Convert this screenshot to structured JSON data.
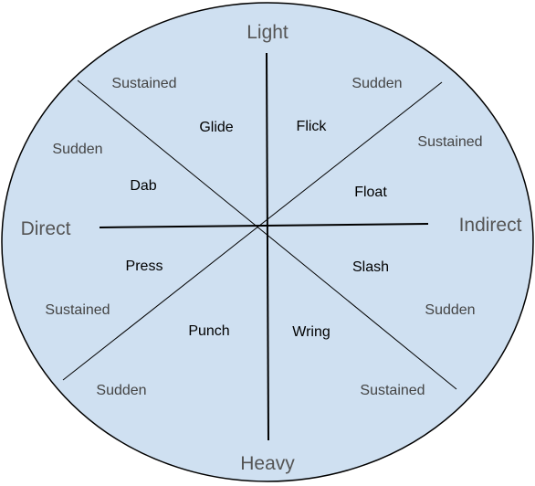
{
  "axes": {
    "top": "Light",
    "bottom": "Heavy",
    "left": "Direct",
    "right": "Indirect"
  },
  "speeds": {
    "top_left": "Sustained",
    "top_right": "Sudden",
    "upper_left": "Sudden",
    "upper_right": "Sustained",
    "lower_left": "Sustained",
    "lower_right": "Sudden",
    "bottom_left": "Sudden",
    "bottom_right": "Sustained"
  },
  "actions": {
    "glide": "Glide",
    "flick": "Flick",
    "dab": "Dab",
    "float": "Float",
    "press": "Press",
    "slash": "Slash",
    "punch": "Punch",
    "wring": "Wring"
  },
  "colors": {
    "fill": "#cfe0f1",
    "stroke": "#000000"
  }
}
